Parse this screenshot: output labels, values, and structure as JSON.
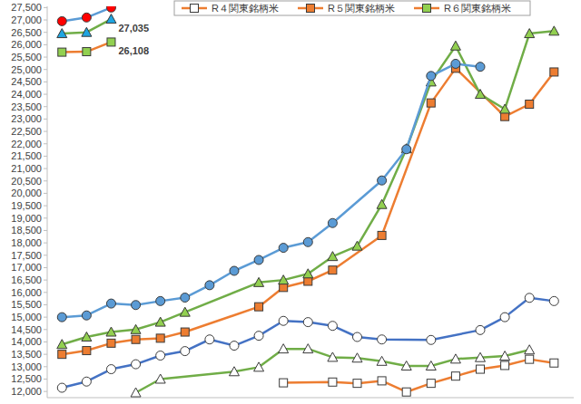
{
  "chart_data": {
    "type": "line",
    "xlim": [
      -0.6,
      20.8
    ],
    "ylim": [
      11750,
      27550
    ],
    "yticks": [
      {
        "value": 12000,
        "label": "12,000"
      },
      {
        "value": 12500,
        "label": "12,500"
      },
      {
        "value": 13000,
        "label": "13,000"
      },
      {
        "value": 13500,
        "label": "13,500"
      },
      {
        "value": 14000,
        "label": "14,000"
      },
      {
        "value": 14500,
        "label": "14,500"
      },
      {
        "value": 15000,
        "label": "15,000"
      },
      {
        "value": 15500,
        "label": "15,500"
      },
      {
        "value": 16000,
        "label": "16,000"
      },
      {
        "value": 16500,
        "label": "16,500"
      },
      {
        "value": 17000,
        "label": "17,000"
      },
      {
        "value": 17500,
        "label": "17,500"
      },
      {
        "value": 18000,
        "label": "18,000"
      },
      {
        "value": 18500,
        "label": "18,500"
      },
      {
        "value": 19000,
        "label": "19,000"
      },
      {
        "value": 19500,
        "label": "19,500"
      },
      {
        "value": 20000,
        "label": "20,000"
      },
      {
        "value": 20500,
        "label": "20,500"
      },
      {
        "value": 21000,
        "label": "21,000"
      },
      {
        "value": 21500,
        "label": "21,500"
      },
      {
        "value": 22000,
        "label": "22,000"
      },
      {
        "value": 22500,
        "label": "22,500"
      },
      {
        "value": 23000,
        "label": "23,000"
      },
      {
        "value": 23500,
        "label": "23,500"
      },
      {
        "value": 24000,
        "label": "24,000"
      },
      {
        "value": 24500,
        "label": "24,500"
      },
      {
        "value": 25000,
        "label": "25,000"
      },
      {
        "value": 25500,
        "label": "25,500"
      },
      {
        "value": 26000,
        "label": "26,000"
      },
      {
        "value": 26500,
        "label": "26,500"
      },
      {
        "value": 27000,
        "label": "27,000"
      },
      {
        "value": 27500,
        "label": "27,500"
      }
    ],
    "grid": false,
    "tick_labels": "y",
    "legend": "top",
    "series": [
      {
        "name": "R４関東銘柄米",
        "color": "#ed7d31",
        "marker": "square",
        "x": [
          9,
          11,
          12,
          13,
          14,
          15,
          16,
          17,
          18,
          19,
          20
        ],
        "values": [
          12350,
          12380,
          12330,
          12430,
          11980,
          12330,
          12620,
          12900,
          13050,
          13300,
          13150
        ],
        "colors": [
          "#ffffff",
          "#ffffff",
          "#ffffff",
          "#ffffff",
          "#ffffff",
          "#ffffff",
          "#ffffff",
          "#ffffff",
          "#ffffff",
          "#ffffff",
          "#ffffff"
        ]
      },
      {
        "name": "R５関東銘柄米",
        "color": "#ed7d31",
        "marker": "square",
        "x": [
          0,
          1,
          2,
          3,
          4,
          5,
          8,
          9,
          10,
          11,
          13,
          15,
          16,
          18,
          19,
          20
        ],
        "values": [
          13500,
          13650,
          13950,
          14100,
          14150,
          14400,
          15420,
          16200,
          16450,
          16900,
          18300,
          23650,
          25050,
          23100,
          23600,
          24900
        ],
        "colors": [
          "#ed7d31",
          "#ed7d31",
          "#ed7d31",
          "#ed7d31",
          "#ed7d31",
          "#ed7d31",
          "#ed7d31",
          "#ed7d31",
          "#ed7d31",
          "#ed7d31",
          "#ed7d31",
          "#ed7d31",
          "#ed7d31",
          "#ed7d31",
          "#ed7d31",
          "#ed7d31"
        ]
      },
      {
        "name": "R６関東銘柄米",
        "color": "#ed7d31",
        "marker": "square",
        "x": [
          0,
          1,
          2
        ],
        "values": [
          25700,
          25720,
          26108
        ],
        "value_labels": [
          null,
          null,
          "26,108"
        ],
        "colors": [
          "#92d050",
          "#92d050",
          "#92d050"
        ]
      },
      {
        "color": "#70ad47",
        "marker": "triangle",
        "x": [
          3,
          4,
          7,
          8,
          9,
          10,
          11,
          12,
          13,
          14,
          15,
          16,
          17,
          18,
          19
        ],
        "values": [
          11950,
          12500,
          12800,
          12980,
          13720,
          13720,
          13380,
          13350,
          13220,
          13030,
          13030,
          13310,
          13370,
          13430,
          13680
        ],
        "colors": [
          "#ffffff",
          "#ffffff",
          "#ffffff",
          "#ffffff",
          "#ffffff",
          "#ffffff",
          "#ffffff",
          "#ffffff",
          "#ffffff",
          "#ffffff",
          "#ffffff",
          "#ffffff",
          "#ffffff",
          "#ffffff",
          "#ffffff"
        ]
      },
      {
        "color": "#4472c4",
        "marker": "circle",
        "x": [
          0,
          1,
          2,
          3,
          4,
          5,
          6,
          7,
          8,
          9,
          10,
          11,
          12,
          13,
          15,
          17,
          18,
          19,
          20
        ],
        "values": [
          12150,
          12400,
          12900,
          13100,
          13450,
          13630,
          14100,
          13850,
          14250,
          14850,
          14800,
          14650,
          14200,
          14100,
          14080,
          14480,
          15000,
          15780,
          15650
        ],
        "colors": [
          "#ffffff",
          "#ffffff",
          "#ffffff",
          "#ffffff",
          "#ffffff",
          "#ffffff",
          "#ffffff",
          "#ffffff",
          "#ffffff",
          "#ffffff",
          "#ffffff",
          "#ffffff",
          "#ffffff",
          "#ffffff",
          "#ffffff",
          "#ffffff",
          "#ffffff",
          "#ffffff",
          "#ffffff"
        ]
      },
      {
        "color": "#70ad47",
        "marker": "triangle",
        "x": [
          0,
          1,
          2,
          3,
          4,
          5,
          8,
          9,
          10,
          11,
          12,
          13,
          14,
          15,
          16,
          17,
          18,
          19,
          20
        ],
        "values": [
          13900,
          14200,
          14400,
          14500,
          14800,
          15200,
          16400,
          16500,
          16750,
          17450,
          17870,
          19550,
          21800,
          24500,
          25950,
          24000,
          23400,
          26450,
          26550
        ],
        "colors": [
          "#92d050",
          "#92d050",
          "#92d050",
          "#92d050",
          "#92d050",
          "#92d050",
          "#92d050",
          "#92d050",
          "#92d050",
          "#92d050",
          "#92d050",
          "#92d050",
          "#92d050",
          "#92d050",
          "#92d050",
          "#92d050",
          "#92d050",
          "#92d050",
          "#92d050"
        ]
      },
      {
        "color": "#5b9bd5",
        "marker": "circle",
        "x": [
          0,
          1,
          2,
          3,
          4,
          5,
          6,
          7,
          8,
          9,
          10,
          11,
          13,
          14,
          15,
          16,
          17
        ],
        "values": [
          15000,
          15070,
          15550,
          15490,
          15650,
          15790,
          16290,
          16870,
          17310,
          17800,
          18030,
          18800,
          20520,
          21780,
          24740,
          25230,
          25110
        ],
        "colors": [
          "#5b9bd5",
          "#5b9bd5",
          "#5b9bd5",
          "#5b9bd5",
          "#5b9bd5",
          "#5b9bd5",
          "#5b9bd5",
          "#5b9bd5",
          "#5b9bd5",
          "#5b9bd5",
          "#5b9bd5",
          "#5b9bd5",
          "#5b9bd5",
          "#5b9bd5",
          "#5b9bd5",
          "#5b9bd5",
          "#5b9bd5"
        ]
      },
      {
        "color": "#70ad47",
        "marker": "triangle",
        "x": [
          0,
          1,
          2
        ],
        "values": [
          26450,
          26500,
          27035
        ],
        "value_labels": [
          null,
          null,
          "27,035"
        ],
        "colors": [
          "#1fa5e0",
          "#1fa5e0",
          "#1fa5e0"
        ]
      },
      {
        "color": "#5b9bd5",
        "marker": "circle",
        "x": [
          0,
          1,
          2
        ],
        "values": [
          26950,
          27100,
          27500
        ],
        "colors": [
          "#ff0000",
          "#ff0000",
          "#ff0000"
        ]
      }
    ]
  }
}
